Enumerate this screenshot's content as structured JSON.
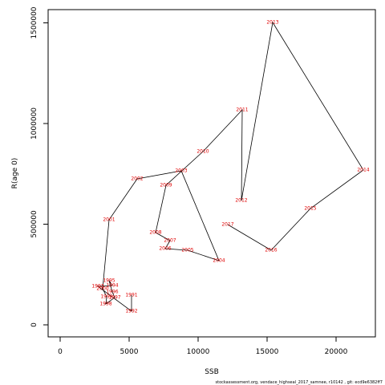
{
  "chart_data": {
    "type": "line",
    "xlabel": "SSB",
    "ylabel": "R(age 0)",
    "footer": "stockassessment.org, vendace_highseal_2017_samnee, r10142 , git: ecd9e6382ff7",
    "x": [
      5174,
      5174,
      2733,
      3779,
      3547,
      3779,
      3953,
      3314,
      3372,
      3081,
      3547,
      5581,
      8779,
      11512,
      9244,
      7616,
      7965,
      6919,
      7674,
      10349,
      13198,
      13140,
      15407,
      21977,
      18140,
      15291,
      12151
    ],
    "series": [
      {
        "name": "R",
        "color": "#000000",
        "label_color": "#e00000",
        "values": [
          147400,
          67700,
          191600,
          195600,
          219500,
          163700,
          135800,
          103600,
          139400,
          179300,
          522000,
          725200,
          765000,
          318700,
          370500,
          378500,
          418300,
          458200,
          693200,
          860500,
          1067700,
          617500,
          1502000,
          768900,
          577700,
          370500,
          498000
        ]
      }
    ],
    "labels": [
      "1991",
      "1992",
      "1993",
      "1994",
      "1995",
      "1996",
      "1997",
      "1998",
      "1999",
      "2000",
      "2001",
      "2002",
      "2003",
      "2004",
      "2005",
      "2006",
      "2007",
      "2008",
      "2009",
      "2010",
      "2011",
      "2012",
      "2013",
      "2014",
      "2015",
      "2016",
      "2017"
    ],
    "xlim": [
      -872,
      22849
    ],
    "ylim": [
      -59761,
      1565737
    ],
    "xticks": [
      0,
      5000,
      10000,
      15000,
      20000
    ],
    "yticks": [
      0,
      500000,
      1000000,
      1500000
    ]
  }
}
